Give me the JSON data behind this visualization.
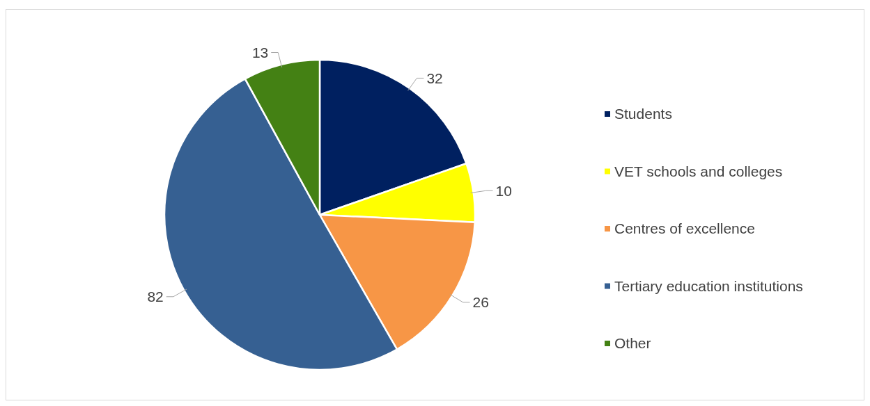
{
  "chart_data": {
    "type": "pie",
    "categories": [
      "Students",
      "VET schools and colleges",
      "Centres of excellence",
      "Tertiary education institutions",
      "Other"
    ],
    "values": [
      32,
      10,
      26,
      82,
      13
    ],
    "colors": [
      "#002060",
      "#ffff00",
      "#f79646",
      "#366092",
      "#448114"
    ],
    "data_labels": true,
    "legend": "right"
  }
}
